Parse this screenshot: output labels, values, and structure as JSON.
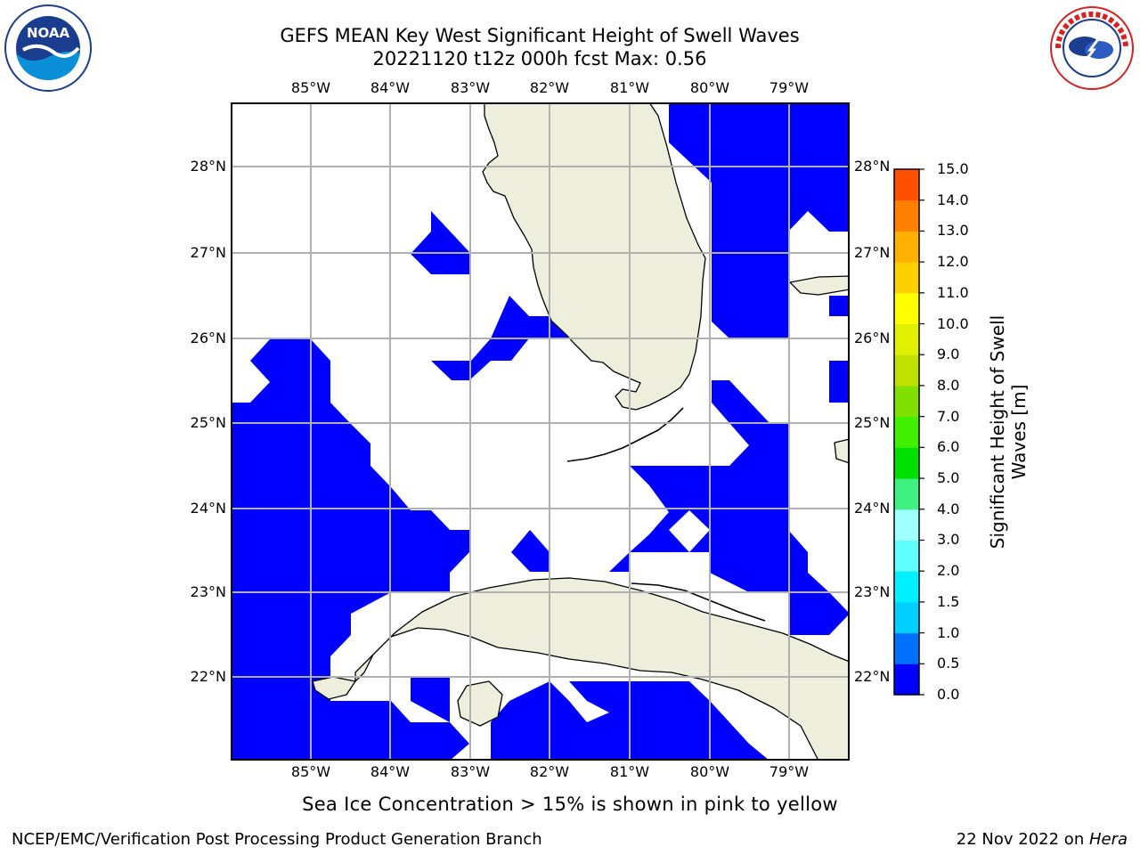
{
  "title_line1": "GEFS MEAN Key West Significant Height of Swell Waves",
  "title_line2": "20221120 t12z 000h fcst   Max: 0.56",
  "lon_labels": [
    "85°W",
    "84°W",
    "83°W",
    "82°W",
    "81°W",
    "80°W",
    "79°W"
  ],
  "lat_labels": [
    "28°N",
    "27°N",
    "26°N",
    "25°N",
    "24°N",
    "23°N",
    "22°N"
  ],
  "colorbar": {
    "title": "Significant Height of Swell Waves [m]",
    "ticks": [
      "0.0",
      "0.5",
      "1.0",
      "1.5",
      "2.0",
      "3.0",
      "4.0",
      "5.0",
      "6.0",
      "7.0",
      "8.0",
      "9.0",
      "10.0",
      "11.0",
      "12.0",
      "13.0",
      "14.0",
      "15.0"
    ],
    "colors": [
      "#0000ff",
      "#0070ff",
      "#00d0ff",
      "#00f0ff",
      "#60ffff",
      "#a0ffff",
      "#40f080",
      "#00e000",
      "#40f000",
      "#80e000",
      "#c0e000",
      "#e0f000",
      "#ffff00",
      "#ffd000",
      "#ffb000",
      "#ff8000",
      "#ff5000",
      "#ff2000",
      "#ff0000"
    ]
  },
  "map": {
    "land_color": "#eeeedd",
    "wave_color": "#0000ff",
    "grid_color": "#b0b0b0",
    "lon_range": [
      -86,
      -78.3
    ],
    "lat_range": [
      21.1,
      28.8
    ]
  },
  "note": "Sea Ice Concentration > 15% is shown in pink to yellow",
  "footer_left": "NCEP/EMC/Verification Post Processing Product Generation Branch",
  "footer_right_date": "22 Nov 2022 on ",
  "footer_right_host": "Hera",
  "logos": {
    "noaa_text": "NOAA",
    "noaa_ring": "NATIONAL OCEANIC AND ATMOSPHERIC ADMINISTRATION · U.S. DEPARTMENT OF COMMERCE",
    "nws_ring": "NATIONAL WEATHER SERVICE"
  }
}
